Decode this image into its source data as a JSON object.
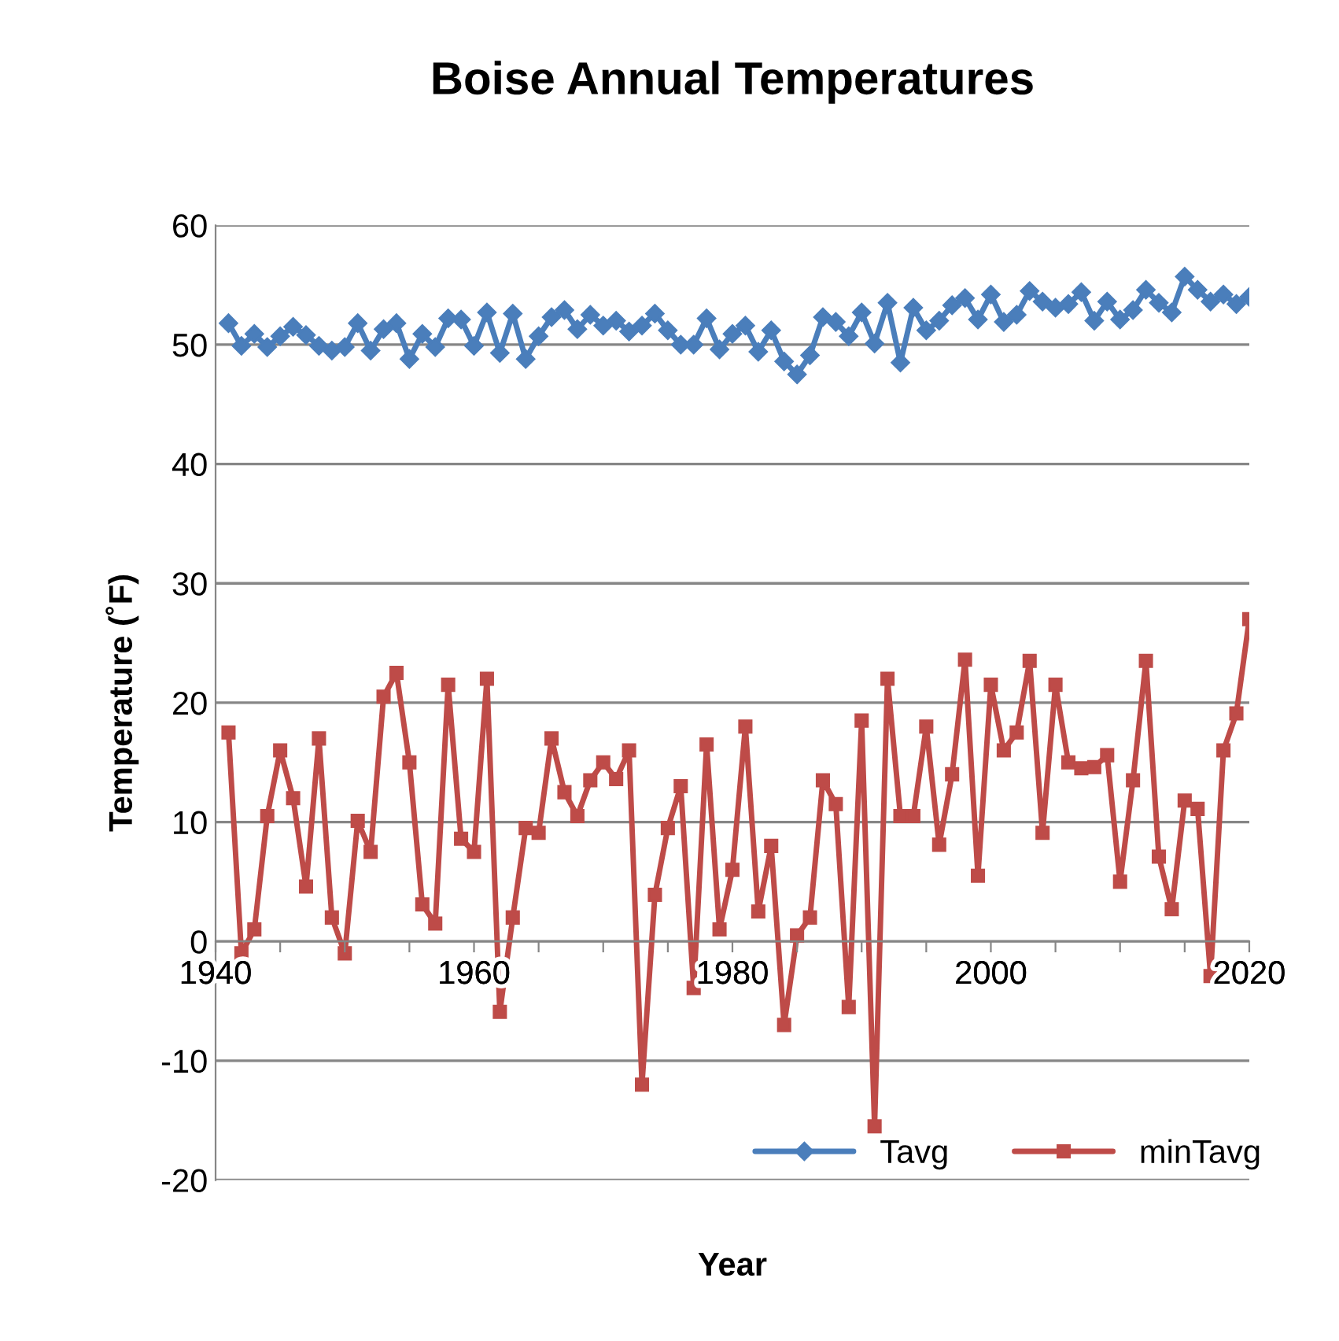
{
  "chart_data": {
    "type": "line",
    "title": "Boise Annual Temperatures",
    "xlabel": "Year",
    "ylabel": "Temperature (˚F)",
    "x": [
      1941,
      1942,
      1943,
      1944,
      1945,
      1946,
      1947,
      1948,
      1949,
      1950,
      1951,
      1952,
      1953,
      1954,
      1955,
      1956,
      1957,
      1958,
      1959,
      1960,
      1961,
      1962,
      1963,
      1964,
      1965,
      1966,
      1967,
      1968,
      1969,
      1970,
      1971,
      1972,
      1973,
      1974,
      1975,
      1976,
      1977,
      1978,
      1979,
      1980,
      1981,
      1982,
      1983,
      1984,
      1985,
      1986,
      1987,
      1988,
      1989,
      1990,
      1991,
      1992,
      1993,
      1994,
      1995,
      1996,
      1997,
      1998,
      1999,
      2000,
      2001,
      2002,
      2003,
      2004,
      2005,
      2006,
      2007,
      2008,
      2009,
      2010,
      2011,
      2012,
      2013,
      2014,
      2015,
      2016,
      2017,
      2018,
      2019,
      2020
    ],
    "series": [
      {
        "name": "Tavg",
        "color": "#4a7ebb",
        "marker": "diamond",
        "values": [
          51.8,
          49.9,
          50.9,
          49.8,
          50.7,
          51.5,
          50.8,
          49.9,
          49.5,
          49.8,
          51.8,
          49.5,
          51.3,
          51.8,
          48.8,
          50.9,
          49.8,
          52.2,
          52.1,
          49.9,
          52.7,
          49.3,
          52.6,
          48.8,
          50.7,
          52.3,
          52.9,
          51.3,
          52.5,
          51.6,
          52,
          51.1,
          51.6,
          52.6,
          51.2,
          50,
          50,
          52.2,
          49.6,
          50.9,
          51.6,
          49.4,
          51.2,
          48.6,
          47.5,
          49.1,
          52.3,
          51.9,
          50.7,
          52.7,
          50.1,
          53.5,
          48.5,
          53.1,
          51.2,
          52,
          53.3,
          53.9,
          52.1,
          54.2,
          51.9,
          52.5,
          54.5,
          53.6,
          53.1,
          53.4,
          54.4,
          52,
          53.6,
          52.1,
          52.9,
          54.6,
          53.5,
          52.7,
          55.7,
          54.6,
          53.6,
          54.2,
          53.4,
          54
        ]
      },
      {
        "name": "minTavg",
        "color": "#be4b48",
        "marker": "square",
        "values": [
          17.5,
          -1,
          1,
          10.5,
          16,
          12,
          4.6,
          17,
          2,
          -1,
          10.1,
          7.5,
          20.5,
          22.5,
          15,
          3.1,
          1.5,
          21.5,
          8.6,
          7.5,
          22,
          -5.9,
          2,
          9.5,
          9.1,
          17,
          12.5,
          10.5,
          13.5,
          15,
          13.6,
          16,
          -12,
          3.9,
          9.5,
          13,
          -3.9,
          16.5,
          1,
          6,
          18,
          2.5,
          8,
          -7,
          0.5,
          2,
          13.5,
          11.5,
          -5.5,
          18.5,
          -15.5,
          22,
          10.5,
          10.5,
          18,
          8.1,
          14,
          23.6,
          5.5,
          21.5,
          16,
          17.5,
          23.5,
          9.1,
          21.5,
          15,
          14.5,
          14.6,
          15.6,
          5,
          13.5,
          23.5,
          7.1,
          2.7,
          11.8,
          11.1,
          -2.9,
          16,
          19.1,
          27
        ]
      }
    ],
    "xlim": [
      1940,
      2020
    ],
    "xticks": [
      1940,
      {
        "value": 1945,
        "label": null
      },
      {
        "value": 1950,
        "label": null
      },
      {
        "value": 1955,
        "label": null
      },
      1960,
      {
        "value": 1965,
        "label": null
      },
      {
        "value": 1970,
        "label": null
      },
      {
        "value": 1975,
        "label": null
      },
      1980,
      {
        "value": 1985,
        "label": null
      },
      {
        "value": 1990,
        "label": null
      },
      {
        "value": 1995,
        "label": null
      },
      2000,
      {
        "value": 2005,
        "label": null
      },
      {
        "value": 2010,
        "label": null
      },
      {
        "value": 2015,
        "label": null
      },
      2020
    ],
    "ylim": [
      -20,
      60
    ],
    "yticks": [
      -20,
      -10,
      0,
      10,
      20,
      30,
      40,
      50,
      60
    ],
    "grid": "y",
    "legend": "bottom right",
    "line_style": "solid"
  }
}
